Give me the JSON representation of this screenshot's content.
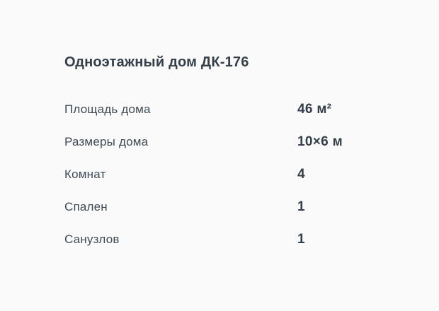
{
  "page": {
    "background_color": "#fafafa",
    "text_color": "#39434e"
  },
  "card": {
    "title": "Одноэтажный дом ДК-176",
    "specs": [
      {
        "label": "Площадь дома",
        "value": "46 м²"
      },
      {
        "label": "Размеры дома",
        "value": "10×6 м"
      },
      {
        "label": "Комнат",
        "value": "4"
      },
      {
        "label": "Спален",
        "value": "1"
      },
      {
        "label": "Санузлов",
        "value": "1"
      }
    ]
  }
}
